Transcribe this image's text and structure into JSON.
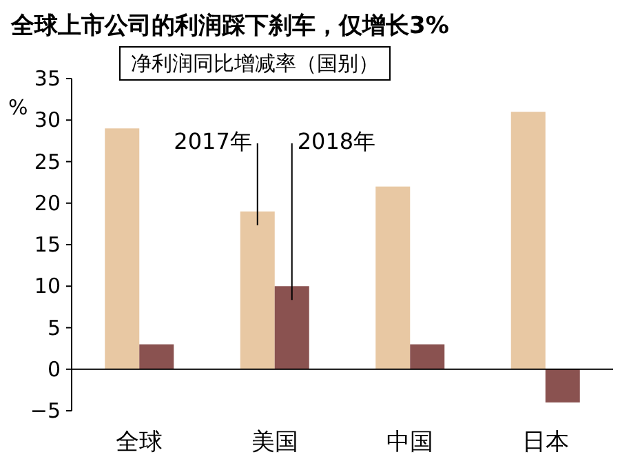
{
  "chart_data": {
    "type": "bar",
    "title": "全球上市公司的利润踩下刹车，仅增长3%",
    "subtitle": "净利润同比增减率（国别）",
    "ylabel": "%",
    "categories": [
      "全球",
      "美国",
      "中国",
      "日本"
    ],
    "series": [
      {
        "name": "2017年",
        "color": "#e8c8a3",
        "values": [
          29,
          19,
          22,
          31
        ]
      },
      {
        "name": "2018年",
        "color": "#8a5250",
        "values": [
          3,
          10,
          3,
          -4
        ]
      }
    ],
    "ylim": [
      -5,
      35
    ],
    "yticks": [
      -5,
      0,
      5,
      10,
      15,
      20,
      25,
      30,
      35
    ],
    "grid": false
  }
}
